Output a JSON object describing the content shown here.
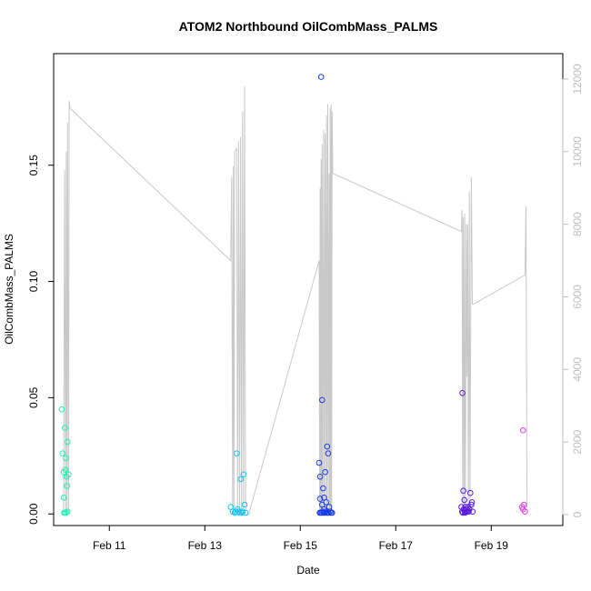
{
  "chart_data": {
    "type": "scatter",
    "title": "ATOM2 Northbound OilCombMass_PALMS",
    "xlabel": "Date",
    "ylabel": "OilCombMass_PALMS",
    "xlim": [
      "2016-02-09T20:00",
      "2016-02-20T12:00"
    ],
    "ylim": [
      -0.005,
      0.198
    ],
    "y_ticks": [
      "0.00",
      "0.05",
      "0.10",
      "0.15"
    ],
    "x_ticks": [
      "Feb 11",
      "Feb 13",
      "Feb 15",
      "Feb 17",
      "Feb 19"
    ],
    "right_axis": {
      "ylim": [
        -300,
        12700
      ],
      "ticks": [
        "0",
        "2000",
        "4000",
        "6000",
        "8000",
        "10000",
        "12000"
      ],
      "color": "#bebebe",
      "line_color": "#c8c8c8",
      "line": [
        [
          "2016-02-10T01:00",
          0
        ],
        [
          "2016-02-10T01:30",
          9500
        ],
        [
          "2016-02-10T02:00",
          0
        ],
        [
          "2016-02-10T02:20",
          10000
        ],
        [
          "2016-02-10T02:40",
          0
        ],
        [
          "2016-02-10T03:00",
          10800
        ],
        [
          "2016-02-10T03:30",
          0
        ],
        [
          "2016-02-10T03:50",
          11400
        ],
        [
          "2016-02-10T04:10",
          11200
        ],
        [
          "2016-02-13T13:00",
          7000
        ],
        [
          "2016-02-13T13:30",
          9300
        ],
        [
          "2016-02-13T14:00",
          0
        ],
        [
          "2016-02-13T14:20",
          9600
        ],
        [
          "2016-02-13T14:40",
          0
        ],
        [
          "2016-02-13T15:00",
          10000
        ],
        [
          "2016-02-13T16:00",
          10100
        ],
        [
          "2016-02-13T16:30",
          0
        ],
        [
          "2016-02-13T17:00",
          10300
        ],
        [
          "2016-02-13T17:30",
          0
        ],
        [
          "2016-02-13T18:00",
          10400
        ],
        [
          "2016-02-13T18:30",
          0
        ],
        [
          "2016-02-13T19:00",
          11100
        ],
        [
          "2016-02-13T19:30",
          0
        ],
        [
          "2016-02-13T20:00",
          11800
        ],
        [
          "2016-02-13T20:30",
          0
        ],
        [
          "2016-02-13T22:00",
          0
        ],
        [
          "2016-02-15T09:30",
          7000
        ],
        [
          "2016-02-15T09:45",
          0
        ],
        [
          "2016-02-15T10:00",
          9000
        ],
        [
          "2016-02-15T10:15",
          0
        ],
        [
          "2016-02-15T10:30",
          9800
        ],
        [
          "2016-02-15T10:45",
          0
        ],
        [
          "2016-02-15T11:00",
          10200
        ],
        [
          "2016-02-15T11:15",
          0
        ],
        [
          "2016-02-15T11:45",
          10600
        ],
        [
          "2016-02-15T12:00",
          0
        ],
        [
          "2016-02-15T12:30",
          10500
        ],
        [
          "2016-02-15T12:45",
          0
        ],
        [
          "2016-02-15T13:10",
          11000
        ],
        [
          "2016-02-15T13:25",
          0
        ],
        [
          "2016-02-15T13:50",
          11300
        ],
        [
          "2016-02-15T14:05",
          0
        ],
        [
          "2016-02-15T14:30",
          9400
        ],
        [
          "2016-02-15T14:45",
          0
        ],
        [
          "2016-02-15T15:00",
          11200
        ],
        [
          "2016-02-15T15:15",
          0
        ],
        [
          "2016-02-15T15:30",
          11300
        ],
        [
          "2016-02-15T15:45",
          0
        ],
        [
          "2016-02-15T16:00",
          11100
        ],
        [
          "2016-02-15T16:20",
          9400
        ],
        [
          "2016-02-18T09:00",
          7800
        ],
        [
          "2016-02-18T09:20",
          8400
        ],
        [
          "2016-02-18T09:40",
          0
        ],
        [
          "2016-02-18T10:00",
          8200
        ],
        [
          "2016-02-18T10:20",
          0
        ],
        [
          "2016-02-18T10:40",
          8300
        ],
        [
          "2016-02-18T11:00",
          0
        ],
        [
          "2016-02-18T11:30",
          8000
        ],
        [
          "2016-02-18T11:50",
          3800
        ],
        [
          "2016-02-18T12:10",
          8000
        ],
        [
          "2016-02-18T12:30",
          0
        ],
        [
          "2016-02-18T13:00",
          8900
        ],
        [
          "2016-02-18T13:20",
          0
        ],
        [
          "2016-02-18T14:00",
          9300
        ],
        [
          "2016-02-18T14:30",
          5800
        ],
        [
          "2016-02-18T15:00",
          5800
        ],
        [
          "2016-02-19T17:00",
          6600
        ],
        [
          "2016-02-19T17:30",
          8500
        ],
        [
          "2016-02-19T18:00",
          200
        ]
      ]
    },
    "series": [
      {
        "color": "#1ef0b0",
        "points": [
          [
            "2016-02-10T00:00",
            0.045
          ],
          [
            "2016-02-10T00:30",
            0.026
          ],
          [
            "2016-02-10T01:00",
            0.018
          ],
          [
            "2016-02-10T01:10",
            0.007
          ],
          [
            "2016-02-10T01:40",
            0.037
          ],
          [
            "2016-02-10T02:00",
            0.019
          ],
          [
            "2016-02-10T02:10",
            0.024
          ],
          [
            "2016-02-10T02:30",
            0.016
          ],
          [
            "2016-02-10T03:00",
            0.031
          ],
          [
            "2016-02-10T03:30",
            0.017
          ],
          [
            "2016-02-10T02:40",
            0.012
          ],
          [
            "2016-02-10T01:15",
            0.0005
          ],
          [
            "2016-02-10T02:15",
            0.0005
          ],
          [
            "2016-02-10T03:00",
            0.001
          ],
          [
            "2016-02-10T01:35",
            0.0005
          ]
        ]
      },
      {
        "color": "#12c6ee",
        "points": [
          [
            "2016-02-13T13:00",
            0.003
          ],
          [
            "2016-02-13T14:00",
            0.001
          ],
          [
            "2016-02-13T15:00",
            0.0005
          ],
          [
            "2016-02-13T16:00",
            0.026
          ],
          [
            "2016-02-13T16:30",
            0.002
          ],
          [
            "2016-02-13T17:00",
            0.001
          ],
          [
            "2016-02-13T18:00",
            0.015
          ],
          [
            "2016-02-13T18:30",
            0.0005
          ],
          [
            "2016-02-13T19:00",
            0.001
          ],
          [
            "2016-02-13T19:30",
            0.017
          ],
          [
            "2016-02-13T20:00",
            0.004
          ],
          [
            "2016-02-13T20:30",
            0.0005
          ],
          [
            "2016-02-13T15:30",
            0.001
          ],
          [
            "2016-02-13T17:30",
            0.0005
          ]
        ]
      },
      {
        "color": "#1a3cf0",
        "points": [
          [
            "2016-02-15T09:30",
            0.022
          ],
          [
            "2016-02-15T10:00",
            0.016
          ],
          [
            "2016-02-15T10:00",
            0.0065
          ],
          [
            "2016-02-15T10:30",
            0.188
          ],
          [
            "2016-02-15T11:00",
            0.049
          ],
          [
            "2016-02-15T11:00",
            0.004
          ],
          [
            "2016-02-15T11:30",
            0.011
          ],
          [
            "2016-02-15T12:00",
            0.007
          ],
          [
            "2016-02-15T12:30",
            0.018
          ],
          [
            "2016-02-15T12:00",
            0.002
          ],
          [
            "2016-02-15T13:00",
            0.005
          ],
          [
            "2016-02-15T13:30",
            0.029
          ],
          [
            "2016-02-15T14:00",
            0.026
          ],
          [
            "2016-02-15T14:30",
            0.003
          ],
          [
            "2016-02-15T15:00",
            0.001
          ],
          [
            "2016-02-15T15:30",
            0.0005
          ],
          [
            "2016-02-15T16:00",
            0.0005
          ],
          [
            "2016-02-15T09:45",
            0.0005
          ],
          [
            "2016-02-15T10:15",
            0.0005
          ],
          [
            "2016-02-15T10:45",
            0.0005
          ],
          [
            "2016-02-15T11:15",
            0.001
          ],
          [
            "2016-02-15T11:45",
            0.0005
          ],
          [
            "2016-02-15T12:15",
            0.0005
          ],
          [
            "2016-02-15T12:45",
            0.001
          ],
          [
            "2016-02-15T13:15",
            0.0005
          ],
          [
            "2016-02-15T13:45",
            0.0005
          ],
          [
            "2016-02-15T14:15",
            0.0005
          ]
        ]
      },
      {
        "color": "#5a1ae0",
        "points": [
          [
            "2016-02-18T09:30",
            0.052
          ],
          [
            "2016-02-18T10:00",
            0.01
          ],
          [
            "2016-02-18T10:30",
            0.006
          ],
          [
            "2016-02-18T09:00",
            0.003
          ],
          [
            "2016-02-18T09:20",
            0.001
          ],
          [
            "2016-02-18T10:10",
            0.002
          ],
          [
            "2016-02-18T10:40",
            0.001
          ],
          [
            "2016-02-18T11:00",
            0.003
          ],
          [
            "2016-02-18T11:20",
            0.001
          ],
          [
            "2016-02-18T11:40",
            0.002
          ],
          [
            "2016-02-18T12:00",
            0.001
          ],
          [
            "2016-02-18T12:20",
            0.003
          ],
          [
            "2016-02-18T12:40",
            0.001
          ],
          [
            "2016-02-18T13:00",
            0.002
          ],
          [
            "2016-02-18T13:30",
            0.009
          ],
          [
            "2016-02-18T14:00",
            0.004
          ],
          [
            "2016-02-18T14:20",
            0.005
          ],
          [
            "2016-02-18T14:40",
            0.001
          ],
          [
            "2016-02-18T09:45",
            0.0005
          ],
          [
            "2016-02-18T10:50",
            0.0005
          ]
        ]
      },
      {
        "color": "#d93ee8",
        "points": [
          [
            "2016-02-19T16:00",
            0.036
          ],
          [
            "2016-02-19T16:30",
            0.004
          ],
          [
            "2016-02-19T16:00",
            0.002
          ],
          [
            "2016-02-19T17:00",
            0.001
          ],
          [
            "2016-02-19T15:30",
            0.003
          ]
        ]
      }
    ]
  }
}
